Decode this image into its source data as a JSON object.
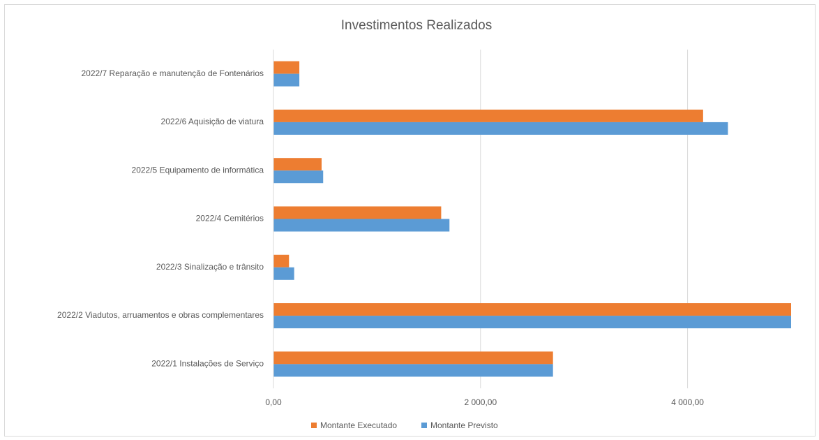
{
  "chart_data": {
    "type": "hbar",
    "title": "Investimentos Realizados",
    "categories": [
      "2022/1 Instalações de Serviço",
      "2022/2 Viadutos, arruamentos e obras complementares",
      "2022/3 Sinalização e trânsito",
      "2022/4 Cemitérios",
      "2022/5 Equipamento de informática",
      "2022/6 Aquisição de viatura",
      "2022/7 Reparação e manutenção de Fontenários"
    ],
    "series": [
      {
        "name": "Montante Executado",
        "color": "#ed7d31",
        "values": [
          2700,
          5000,
          150,
          1620,
          465,
          4150,
          250
        ]
      },
      {
        "name": "Montante Previsto",
        "color": "#5b9bd5",
        "values": [
          2700,
          5000,
          200,
          1700,
          480,
          4390,
          250
        ]
      }
    ],
    "xlim": [
      0,
      5000
    ],
    "xticks": [
      {
        "value": 0,
        "label": "0,00"
      },
      {
        "value": 2000,
        "label": "2 000,00"
      },
      {
        "value": 4000,
        "label": "4 000,00"
      }
    ],
    "grid": true,
    "legend": "bottom"
  }
}
